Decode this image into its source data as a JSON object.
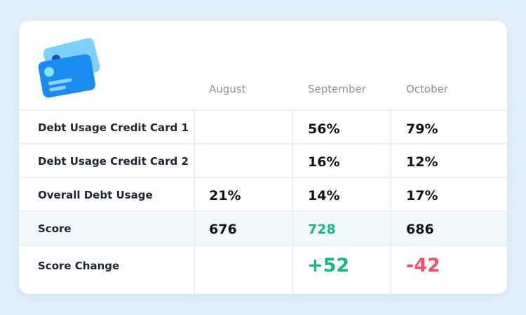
{
  "columns": [
    "August",
    "September",
    "October"
  ],
  "rows": [
    {
      "label": "Debt Usage Credit Card 1",
      "values": [
        "",
        "56%",
        "79%"
      ]
    },
    {
      "label": "Debt Usage Credit Card 2",
      "values": [
        "",
        "16%",
        "12%"
      ]
    },
    {
      "label": "Overall Debt Usage",
      "values": [
        "21%",
        "14%",
        "17%"
      ]
    },
    {
      "label": "Score",
      "values": [
        "676",
        "728",
        "686"
      ]
    },
    {
      "label": "Score Change",
      "values": [
        "",
        "+52",
        "-42"
      ]
    }
  ],
  "colors": {
    "positive": "#12b886",
    "negative": "#f0506e",
    "highlight_row": "#f1f8fc",
    "card_front": "#1a8cf0",
    "card_back": "#7cd0fb"
  },
  "icons": {
    "logo": "credit-cards-icon"
  }
}
